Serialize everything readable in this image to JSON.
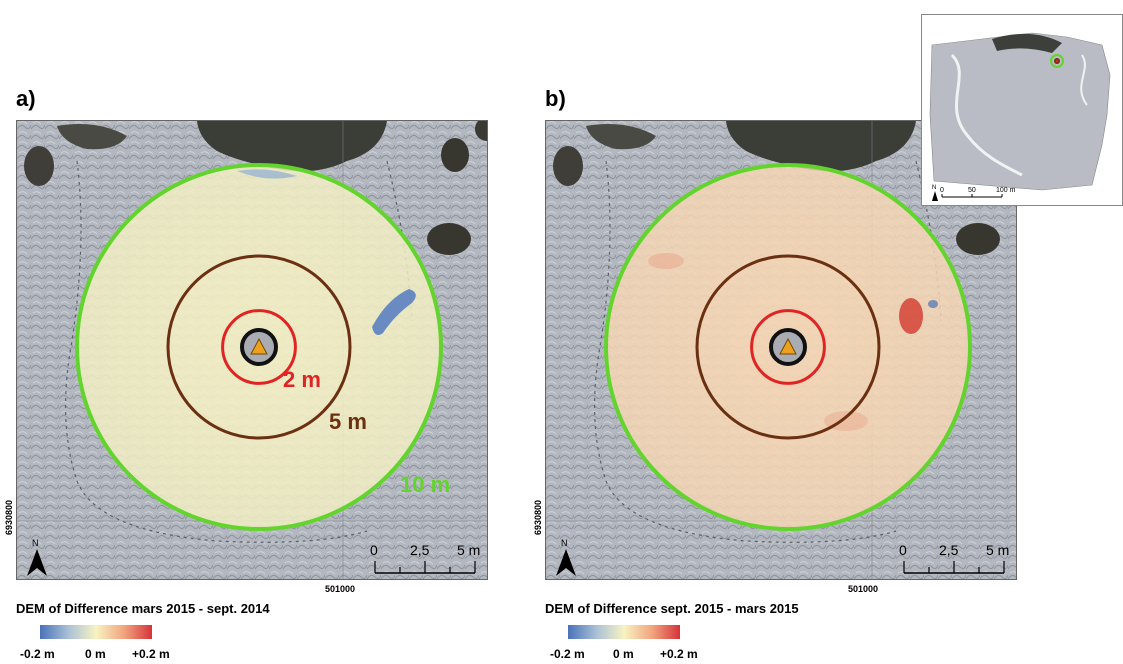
{
  "panels": [
    {
      "label": "a)",
      "legend_title": "DEM of Difference mars 2015 - sept. 2014",
      "fill_color": "#f4f0c4",
      "anomaly_color": "#3f6cc2",
      "show_ring_labels": true
    },
    {
      "label": "b)",
      "legend_title": "DEM of Difference sept. 2015 - mars 2015",
      "fill_color": "#f7d7b4",
      "anomaly_color": "#d23a2e",
      "show_ring_labels": false
    }
  ],
  "rings": [
    {
      "radius_m": 2,
      "label": "2 m",
      "color": "#e02424"
    },
    {
      "radius_m": 5,
      "label": "5 m",
      "color": "#6b2f12"
    },
    {
      "radius_m": 10,
      "label": "10 m",
      "color": "#63d42e"
    }
  ],
  "coord_x": "501000",
  "coord_y": "6930800",
  "north": "N",
  "scale_labels": [
    "0",
    "2,5",
    "5 m"
  ],
  "legend_labels": {
    "min": "-0.2 m",
    "mid": "0 m",
    "max": "+0.2 m"
  },
  "inset": {
    "scale_labels": [
      "0",
      "50",
      "100 m"
    ],
    "north": "N"
  }
}
